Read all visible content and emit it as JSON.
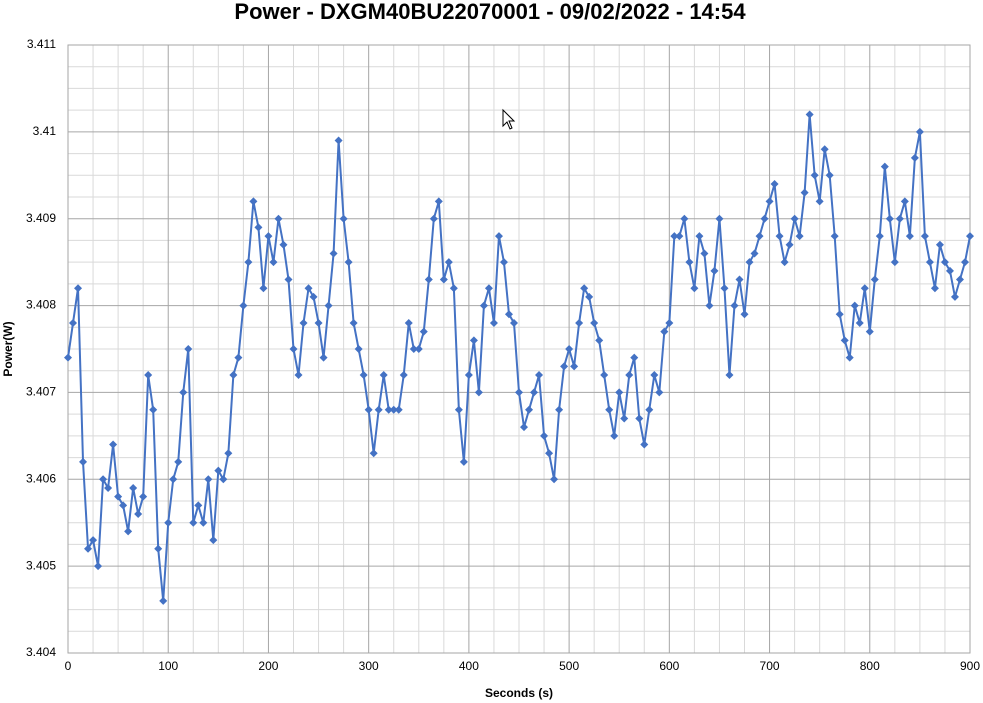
{
  "chart_data": {
    "type": "line",
    "title": "Power - DXGM40BU22070001 - 09/02/2022 - 14:54",
    "x_label": "Seconds (s)",
    "y_label": "Power(W)",
    "xlim": [
      0,
      900
    ],
    "xticks": [
      0,
      100,
      200,
      300,
      400,
      500,
      600,
      700,
      800,
      900
    ],
    "ylim": [
      3.404,
      3.411
    ],
    "yticks": [
      3.404,
      3.405,
      3.406,
      3.407,
      3.408,
      3.409,
      3.41,
      3.411
    ],
    "grid": true,
    "series": [
      {
        "name": "Power(W)",
        "color": "#4472c4",
        "x": [
          0,
          5,
          10,
          15,
          20,
          25,
          30,
          35,
          40,
          45,
          50,
          55,
          60,
          65,
          70,
          75,
          80,
          85,
          90,
          95,
          100,
          105,
          110,
          115,
          120,
          125,
          130,
          135,
          140,
          145,
          150,
          155,
          160,
          165,
          170,
          175,
          180,
          185,
          190,
          195,
          200,
          205,
          210,
          215,
          220,
          225,
          230,
          235,
          240,
          245,
          250,
          255,
          260,
          265,
          270,
          275,
          280,
          285,
          290,
          295,
          300,
          305,
          310,
          315,
          320,
          325,
          330,
          335,
          340,
          345,
          350,
          355,
          360,
          365,
          370,
          375,
          380,
          385,
          390,
          395,
          400,
          405,
          410,
          415,
          420,
          425,
          430,
          435,
          440,
          445,
          450,
          455,
          460,
          465,
          470,
          475,
          480,
          485,
          490,
          495,
          500,
          505,
          510,
          515,
          520,
          525,
          530,
          535,
          540,
          545,
          550,
          555,
          560,
          565,
          570,
          575,
          580,
          585,
          590,
          595,
          600,
          605,
          610,
          615,
          620,
          625,
          630,
          635,
          640,
          645,
          650,
          655,
          660,
          665,
          670,
          675,
          680,
          685,
          690,
          695,
          700,
          705,
          710,
          715,
          720,
          725,
          730,
          735,
          740,
          745,
          750,
          755,
          760,
          765,
          770,
          775,
          780,
          785,
          790,
          795,
          800,
          805,
          810,
          815,
          820,
          825,
          830,
          835,
          840,
          845,
          850,
          855,
          860,
          865,
          870,
          875,
          880,
          885,
          890,
          895,
          900
        ],
        "values": [
          3.4074,
          3.4078,
          3.4082,
          3.4062,
          3.4052,
          3.4053,
          3.405,
          3.406,
          3.4059,
          3.4064,
          3.4058,
          3.4057,
          3.4054,
          3.4059,
          3.4056,
          3.4058,
          3.4072,
          3.4068,
          3.4052,
          3.4046,
          3.4055,
          3.406,
          3.4062,
          3.407,
          3.4075,
          3.4055,
          3.4057,
          3.4055,
          3.406,
          3.4053,
          3.4061,
          3.406,
          3.4063,
          3.4072,
          3.4074,
          3.408,
          3.4085,
          3.4092,
          3.4089,
          3.4082,
          3.4088,
          3.4085,
          3.409,
          3.4087,
          3.4083,
          3.4075,
          3.4072,
          3.4078,
          3.4082,
          3.4081,
          3.4078,
          3.4074,
          3.408,
          3.4086,
          3.4099,
          3.409,
          3.4085,
          3.4078,
          3.4075,
          3.4072,
          3.4068,
          3.4063,
          3.4068,
          3.4072,
          3.4068,
          3.4068,
          3.4068,
          3.4072,
          3.4078,
          3.4075,
          3.4075,
          3.4077,
          3.4083,
          3.409,
          3.4092,
          3.4083,
          3.4085,
          3.4082,
          3.4068,
          3.4062,
          3.4072,
          3.4076,
          3.407,
          3.408,
          3.4082,
          3.4078,
          3.4088,
          3.4085,
          3.4079,
          3.4078,
          3.407,
          3.4066,
          3.4068,
          3.407,
          3.4072,
          3.4065,
          3.4063,
          3.406,
          3.4068,
          3.4073,
          3.4075,
          3.4073,
          3.4078,
          3.4082,
          3.4081,
          3.4078,
          3.4076,
          3.4072,
          3.4068,
          3.4065,
          3.407,
          3.4067,
          3.4072,
          3.4074,
          3.4067,
          3.4064,
          3.4068,
          3.4072,
          3.407,
          3.4077,
          3.4078,
          3.4088,
          3.4088,
          3.409,
          3.4085,
          3.4082,
          3.4088,
          3.4086,
          3.408,
          3.4084,
          3.409,
          3.4082,
          3.4072,
          3.408,
          3.4083,
          3.4079,
          3.4085,
          3.4086,
          3.4088,
          3.409,
          3.4092,
          3.4094,
          3.4088,
          3.4085,
          3.4087,
          3.409,
          3.4088,
          3.4093,
          3.4102,
          3.4095,
          3.4092,
          3.4098,
          3.4095,
          3.4088,
          3.4079,
          3.4076,
          3.4074,
          3.408,
          3.4078,
          3.4082,
          3.4077,
          3.4083,
          3.4088,
          3.4096,
          3.409,
          3.4085,
          3.409,
          3.4092,
          3.4088,
          3.4097,
          3.41,
          3.4088,
          3.4085,
          3.4082,
          3.4087,
          3.4085,
          3.4084,
          3.4081,
          3.4083,
          3.4085,
          3.4088
        ]
      }
    ]
  }
}
